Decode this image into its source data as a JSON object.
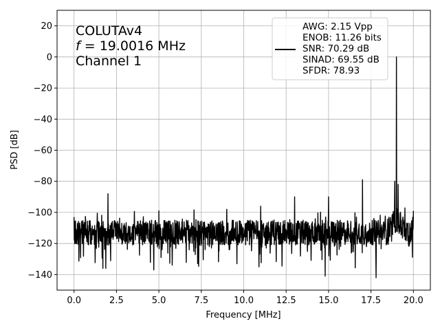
{
  "chart_data": {
    "type": "line",
    "xlabel": "Frequency [MHz]",
    "ylabel": "PSD [dB]",
    "xlim": [
      -1.0,
      21.0
    ],
    "ylim": [
      -150,
      30
    ],
    "xticks": [
      0.0,
      2.5,
      5.0,
      7.5,
      10.0,
      12.5,
      15.0,
      17.5,
      20.0
    ],
    "xtick_labels": [
      "0.0",
      "2.5",
      "5.0",
      "7.5",
      "10.0",
      "12.5",
      "15.0",
      "17.5",
      "20.0"
    ],
    "yticks": [
      -140,
      -120,
      -100,
      -80,
      -60,
      -40,
      -20,
      0,
      20
    ],
    "ytick_labels": [
      "−140",
      "−120",
      "−100",
      "−80",
      "−60",
      "−40",
      "−20",
      "0",
      "20"
    ],
    "grid": true,
    "legend_position": "top-right",
    "line_color": "#000000",
    "annotation": {
      "line1": "COLUTAv4",
      "line2_var": "f",
      "line2_rest": " = 19.0016 MHz",
      "line3": "Channel 1"
    },
    "legend_lines": [
      "AWG: 2.15 Vpp",
      "ENOB: 11.26 bits",
      "SNR: 70.29 dB",
      "SINAD: 69.55 dB",
      "SFDR: 78.93"
    ],
    "series": [
      {
        "noise_floor_db": -113,
        "x_range": [
          0.0,
          20.0
        ],
        "peaks": [
          {
            "x": 19.0016,
            "y": 0
          },
          {
            "x": 17.0,
            "y": -79
          },
          {
            "x": 2.0,
            "y": -88
          },
          {
            "x": 13.0,
            "y": -90
          },
          {
            "x": 11.0,
            "y": -96
          },
          {
            "x": 15.0,
            "y": -90
          },
          {
            "x": 9.0,
            "y": -98
          },
          {
            "x": 5.0,
            "y": -99
          },
          {
            "x": 18.9,
            "y": -80
          },
          {
            "x": 19.1,
            "y": -82
          },
          {
            "x": 20.0,
            "y": -99
          },
          {
            "x": 0.0,
            "y": -103
          }
        ],
        "dips": [
          {
            "x": 14.8,
            "y": -141
          },
          {
            "x": 17.8,
            "y": -142
          },
          {
            "x": 1.7,
            "y": -136
          },
          {
            "x": 4.7,
            "y": -137
          },
          {
            "x": 10.9,
            "y": -135
          }
        ]
      }
    ]
  }
}
